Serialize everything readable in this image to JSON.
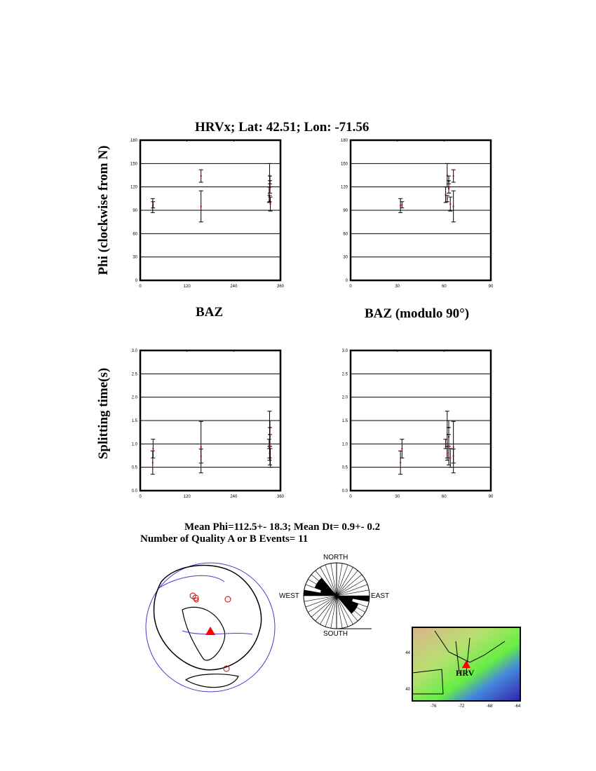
{
  "title": "HRVx; Lat:  42.51;  Lon:  -71.56",
  "ylabel_top": "Phi (clockwise from N)",
  "ylabel_bottom": "Splitting time(s)",
  "xlabel_left": "BAZ",
  "xlabel_right": "BAZ (modulo 90°)",
  "summary_line1": "Mean Phi=112.5+- 18.3; Mean Dt=  0.9+-  0.2",
  "summary_line2": "Number of Quality A  or B  Events= 11",
  "colors": {
    "point": "#cc0000",
    "errorbar": "#000000",
    "station": "#ff0000",
    "plate_boundary": "#5533cc"
  },
  "chart_data": [
    {
      "type": "scatter",
      "id": "phi_vs_baz",
      "xlabel": "BAZ",
      "ylabel": "Phi (clockwise from N)",
      "xlim": [
        0,
        360
      ],
      "ylim": [
        0,
        180
      ],
      "grid": true,
      "xticks": [
        "0",
        "120",
        "240",
        "360"
      ],
      "yticks": [
        "0",
        "30",
        "60",
        "90",
        "120",
        "150",
        "180"
      ],
      "x": [
        32,
        33,
        156,
        156,
        332,
        333,
        333,
        331,
        332,
        334,
        333
      ],
      "y": [
        96,
        97,
        134,
        95,
        135,
        127,
        120,
        110,
        105,
        98,
        118
      ],
      "yerr": [
        9,
        4,
        8,
        20,
        15,
        7,
        8,
        10,
        4,
        9,
        6
      ]
    },
    {
      "type": "scatter",
      "id": "phi_vs_baz_mod90",
      "xlabel": "BAZ (modulo 90°)",
      "ylabel": "",
      "xlim": [
        0,
        90
      ],
      "ylim": [
        0,
        180
      ],
      "grid": true,
      "xticks": [
        "0",
        "30",
        "60",
        "90"
      ],
      "yticks": [
        "0",
        "30",
        "60",
        "90",
        "120",
        "150",
        "180"
      ],
      "x": [
        32,
        33,
        66,
        66,
        62,
        63,
        63,
        61,
        62,
        64,
        63
      ],
      "y": [
        96,
        97,
        134,
        95,
        135,
        127,
        120,
        110,
        105,
        98,
        118
      ],
      "yerr": [
        9,
        4,
        8,
        20,
        15,
        7,
        8,
        10,
        4,
        9,
        6
      ]
    },
    {
      "type": "scatter",
      "id": "dt_vs_baz",
      "xlabel": "BAZ",
      "ylabel": "Splitting time(s)",
      "xlim": [
        0,
        360
      ],
      "ylim": [
        0,
        3
      ],
      "grid": true,
      "xticks": [
        "0",
        "120",
        "240",
        "360"
      ],
      "yticks": [
        "0.0",
        "0.5",
        "1.0",
        "1.5",
        "2.0",
        "2.5",
        "3.0"
      ],
      "x": [
        32,
        33,
        156,
        156,
        332,
        333,
        333,
        331,
        332,
        334,
        333
      ],
      "y": [
        0.6,
        0.9,
        0.93,
        0.74,
        1.2,
        1.35,
        1.15,
        1.0,
        0.8,
        0.7,
        0.95
      ],
      "yerr": [
        0.25,
        0.2,
        0.55,
        0.15,
        0.5,
        0.15,
        0.2,
        0.1,
        0.15,
        0.2,
        0.4
      ]
    },
    {
      "type": "scatter",
      "id": "dt_vs_baz_mod90",
      "xlabel": "BAZ (modulo 90°)",
      "ylabel": "",
      "xlim": [
        0,
        90
      ],
      "ylim": [
        0,
        3
      ],
      "grid": true,
      "xticks": [
        "0",
        "30",
        "60",
        "90"
      ],
      "yticks": [
        "0.0",
        "0.5",
        "1.0",
        "1.5",
        "2.0",
        "2.5",
        "3.0"
      ],
      "x": [
        32,
        33,
        66,
        66,
        62,
        63,
        63,
        61,
        62,
        64,
        63
      ],
      "y": [
        0.6,
        0.9,
        0.93,
        0.74,
        1.2,
        1.35,
        1.15,
        1.0,
        0.8,
        0.7,
        0.95
      ],
      "yerr": [
        0.25,
        0.2,
        0.55,
        0.15,
        0.5,
        0.15,
        0.2,
        0.1,
        0.15,
        0.2,
        0.4
      ]
    }
  ],
  "rose": {
    "labels": {
      "north": "NORTH",
      "south": "SOUTH",
      "east": "EAST",
      "west": "WEST"
    },
    "bin_deg": 10,
    "bin_starts": [
      90,
      100,
      110,
      120,
      130
    ],
    "counts": [
      4,
      1,
      2,
      2,
      2
    ]
  },
  "regional_map": {
    "station_label": "HRV",
    "lon_ticks": [
      "-76",
      "-72",
      "-68",
      "-64"
    ],
    "lat_ticks": [
      "40",
      "44"
    ]
  }
}
